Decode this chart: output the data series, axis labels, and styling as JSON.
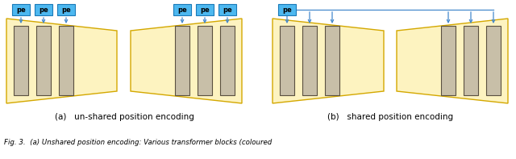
{
  "bg_color": "#ffffff",
  "trap_fill": "#fdf3c0",
  "trap_edge": "#d4a800",
  "rect_fill": "#c8bfa8",
  "rect_edge": "#5a5040",
  "pe_fill": "#4db8f0",
  "pe_edge": "#1a7ab8",
  "pe_text_color": "#000000",
  "arrow_color": "#4488cc",
  "line_color": "#4488cc",
  "label_a": "(a)   un-shared position encoding",
  "label_b": "(b)   shared position encoding",
  "caption": "Fig. 3.  (a) Unshared position encoding: Various transformer blocks (coloured",
  "caption_color": "#000000"
}
